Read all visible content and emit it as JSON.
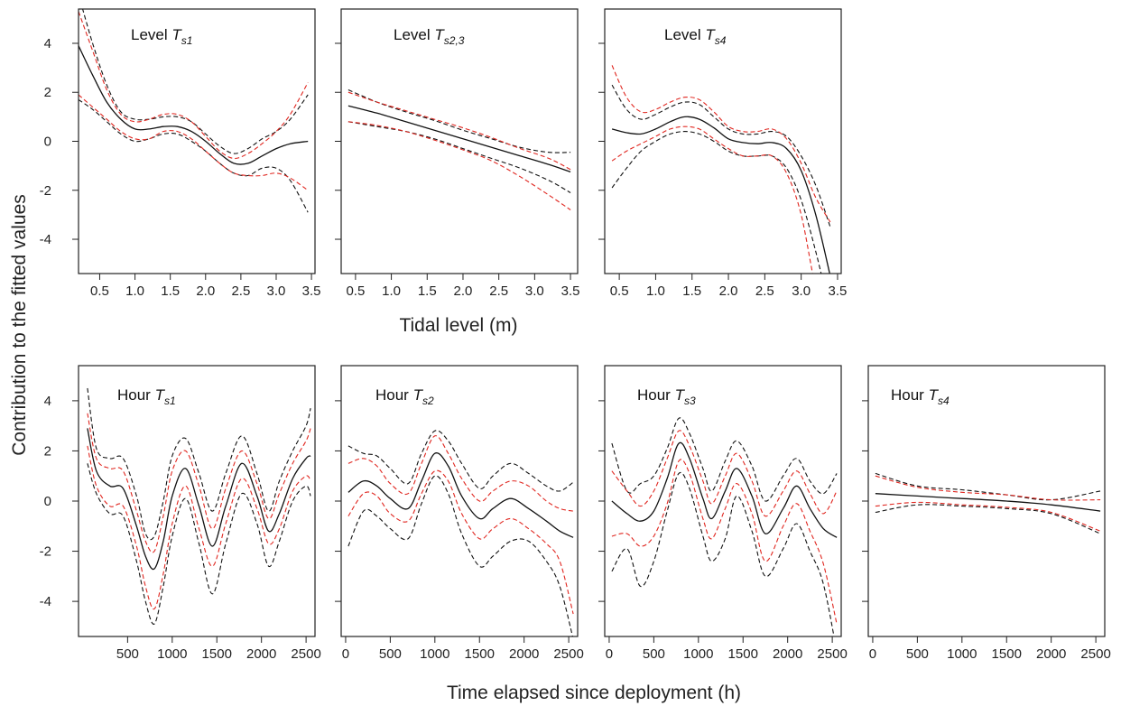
{
  "figure": {
    "ylabel": "Contribution to the fitted values",
    "xlabel_top": "Tidal level (m)",
    "xlabel_bottom": "Time elapsed since deployment (h)"
  },
  "colors": {
    "fit": "#111111",
    "ci_black": "#111111",
    "ci_red": "#e0261f"
  },
  "chart_data": [
    {
      "type": "line",
      "label_prefix": "Level",
      "label_sub": "s1",
      "xlim": [
        0.2,
        3.55
      ],
      "ylim": [
        -5.4,
        5.4
      ],
      "xticks": [
        "0.5",
        "1.0",
        "1.5",
        "2.0",
        "2.5",
        "3.0",
        "3.5"
      ],
      "yticks": [
        "-4",
        "-2",
        "0",
        "2",
        "4"
      ],
      "x": [
        0.2,
        0.4,
        0.6,
        0.8,
        1.0,
        1.2,
        1.4,
        1.6,
        1.8,
        2.0,
        2.2,
        2.4,
        2.6,
        2.8,
        3.0,
        3.2,
        3.45
      ],
      "series": [
        {
          "style": "fit",
          "values": [
            3.9,
            2.7,
            1.6,
            0.9,
            0.5,
            0.5,
            0.6,
            0.6,
            0.4,
            0.0,
            -0.5,
            -0.9,
            -0.9,
            -0.6,
            -0.3,
            -0.1,
            0.0
          ]
        },
        {
          "style": "ci_black",
          "values": [
            6.0,
            4.0,
            2.3,
            1.2,
            0.9,
            0.9,
            1.0,
            1.0,
            0.8,
            0.3,
            -0.2,
            -0.5,
            -0.3,
            0.1,
            0.4,
            0.9,
            1.9
          ]
        },
        {
          "style": "ci_black",
          "values": [
            1.7,
            1.3,
            0.8,
            0.3,
            0.0,
            0.1,
            0.3,
            0.3,
            0.0,
            -0.4,
            -0.9,
            -1.3,
            -1.4,
            -1.1,
            -1.1,
            -1.6,
            -2.9
          ]
        },
        {
          "style": "ci_red",
          "values": [
            5.3,
            3.7,
            2.1,
            1.1,
            0.8,
            0.9,
            1.1,
            1.1,
            0.8,
            0.2,
            -0.4,
            -0.7,
            -0.5,
            -0.1,
            0.4,
            1.1,
            2.4
          ]
        },
        {
          "style": "ci_red",
          "values": [
            1.9,
            1.4,
            0.9,
            0.4,
            0.1,
            0.1,
            0.4,
            0.4,
            0.1,
            -0.4,
            -0.9,
            -1.3,
            -1.4,
            -1.4,
            -1.3,
            -1.5,
            -2.0
          ]
        }
      ]
    },
    {
      "type": "line",
      "label_prefix": "Level",
      "label_sub": "s2,3",
      "xlim": [
        0.3,
        3.6
      ],
      "ylim": [
        -5.4,
        5.4
      ],
      "xticks": [
        "0.5",
        "1.0",
        "1.5",
        "2.0",
        "2.5",
        "3.0",
        "3.5"
      ],
      "yticks": [
        "-4",
        "-2",
        "0",
        "2",
        "4"
      ],
      "x": [
        0.4,
        0.8,
        1.2,
        1.6,
        2.0,
        2.4,
        2.8,
        3.2,
        3.5
      ],
      "series": [
        {
          "style": "fit",
          "values": [
            1.45,
            1.15,
            0.8,
            0.45,
            0.1,
            -0.25,
            -0.6,
            -0.95,
            -1.25
          ]
        },
        {
          "style": "ci_black",
          "values": [
            2.1,
            1.6,
            1.2,
            0.85,
            0.45,
            0.1,
            -0.25,
            -0.45,
            -0.45
          ]
        },
        {
          "style": "ci_black",
          "values": [
            0.8,
            0.6,
            0.4,
            0.1,
            -0.3,
            -0.7,
            -1.1,
            -1.6,
            -2.1
          ]
        },
        {
          "style": "ci_red",
          "values": [
            2.0,
            1.6,
            1.25,
            0.9,
            0.55,
            0.15,
            -0.3,
            -0.7,
            -1.15
          ]
        },
        {
          "style": "ci_red",
          "values": [
            0.8,
            0.65,
            0.4,
            0.05,
            -0.35,
            -0.8,
            -1.45,
            -2.2,
            -2.8
          ]
        }
      ]
    },
    {
      "type": "line",
      "label_prefix": "Level",
      "label_sub": "s4",
      "xlim": [
        0.3,
        3.55
      ],
      "ylim": [
        -5.4,
        5.4
      ],
      "xticks": [
        "0.5",
        "1.0",
        "1.5",
        "2.0",
        "2.5",
        "3.0",
        "3.5"
      ],
      "yticks": [
        "-4",
        "-2",
        "0",
        "2",
        "4"
      ],
      "x": [
        0.4,
        0.6,
        0.8,
        1.0,
        1.2,
        1.4,
        1.6,
        1.8,
        2.0,
        2.2,
        2.4,
        2.6,
        2.8,
        3.0,
        3.2,
        3.4
      ],
      "series": [
        {
          "style": "fit",
          "values": [
            0.5,
            0.35,
            0.3,
            0.5,
            0.8,
            1.0,
            0.9,
            0.55,
            0.1,
            -0.05,
            -0.1,
            -0.05,
            -0.3,
            -1.2,
            -3.0,
            -5.5
          ]
        },
        {
          "style": "ci_black",
          "values": [
            2.3,
            1.3,
            0.9,
            1.1,
            1.4,
            1.6,
            1.5,
            1.0,
            0.5,
            0.3,
            0.3,
            0.4,
            0.2,
            -0.6,
            -1.8,
            -3.5
          ]
        },
        {
          "style": "ci_black",
          "values": [
            -1.9,
            -1.1,
            -0.4,
            0.0,
            0.3,
            0.4,
            0.3,
            0.0,
            -0.4,
            -0.6,
            -0.6,
            -0.6,
            -1.1,
            -2.4,
            -4.5,
            -7.0
          ]
        },
        {
          "style": "ci_red",
          "values": [
            3.1,
            1.8,
            1.2,
            1.3,
            1.6,
            1.8,
            1.7,
            1.2,
            0.6,
            0.4,
            0.4,
            0.5,
            0.1,
            -0.9,
            -2.3,
            -3.3
          ]
        },
        {
          "style": "ci_red",
          "values": [
            -0.8,
            -0.4,
            -0.1,
            0.2,
            0.5,
            0.6,
            0.5,
            0.1,
            -0.3,
            -0.6,
            -0.6,
            -0.6,
            -1.3,
            -3.0,
            -6.0,
            -8.0
          ]
        }
      ]
    },
    {
      "type": "line",
      "label_prefix": "Hour",
      "label_sub": "s1",
      "xlim": [
        -50,
        2600
      ],
      "ylim": [
        -5.4,
        5.4
      ],
      "xticks": [
        "500",
        "1000",
        "1500",
        "2000",
        "2500"
      ],
      "yticks": [
        "-4",
        "-2",
        "0",
        "2",
        "4"
      ],
      "x": [
        50,
        150,
        300,
        450,
        600,
        700,
        800,
        900,
        1000,
        1150,
        1300,
        1450,
        1600,
        1780,
        1950,
        2080,
        2200,
        2350,
        2500,
        2550
      ],
      "series": [
        {
          "style": "fit",
          "values": [
            2.9,
            1.2,
            0.6,
            0.5,
            -1.0,
            -2.2,
            -2.7,
            -1.6,
            0.2,
            1.3,
            -0.2,
            -1.8,
            -0.2,
            1.5,
            0.2,
            -1.2,
            -0.5,
            0.9,
            1.7,
            1.8
          ]
        },
        {
          "style": "ci_black",
          "values": [
            4.5,
            2.1,
            1.7,
            1.7,
            0.2,
            -1.3,
            -1.4,
            0.0,
            1.8,
            2.5,
            1.1,
            -0.4,
            1.1,
            2.6,
            1.1,
            -0.4,
            0.8,
            2.0,
            3.0,
            3.7
          ]
        },
        {
          "style": "ci_black",
          "values": [
            1.5,
            0.3,
            -0.5,
            -0.6,
            -2.4,
            -4.0,
            -4.9,
            -3.4,
            -1.4,
            0.1,
            -1.7,
            -3.7,
            -1.7,
            0.3,
            -0.9,
            -2.6,
            -1.6,
            0.0,
            0.6,
            0.2
          ]
        },
        {
          "style": "ci_red",
          "values": [
            3.5,
            1.7,
            1.3,
            1.2,
            -0.4,
            -1.6,
            -2.0,
            -0.6,
            1.2,
            2.0,
            0.6,
            -1.1,
            0.5,
            2.0,
            0.7,
            -0.7,
            0.3,
            1.5,
            2.4,
            2.9
          ]
        },
        {
          "style": "ci_red",
          "values": [
            2.2,
            0.6,
            -0.2,
            -0.2,
            -1.8,
            -3.4,
            -4.3,
            -2.9,
            -0.9,
            0.6,
            -1.1,
            -2.6,
            -0.9,
            0.9,
            -0.3,
            -1.7,
            -1.1,
            0.4,
            1.0,
            0.8
          ]
        }
      ]
    },
    {
      "type": "line",
      "label_prefix": "Hour",
      "label_sub": "s2",
      "xlim": [
        -50,
        2600
      ],
      "ylim": [
        -5.4,
        5.4
      ],
      "xticks": [
        "0",
        "500",
        "1000",
        "1500",
        "2000",
        "2500"
      ],
      "yticks": [
        "-4",
        "-2",
        "0",
        "2",
        "4"
      ],
      "x": [
        30,
        200,
        350,
        500,
        700,
        850,
        1000,
        1150,
        1300,
        1500,
        1650,
        1850,
        2050,
        2250,
        2400,
        2550
      ],
      "series": [
        {
          "style": "fit",
          "values": [
            0.35,
            0.8,
            0.6,
            0.1,
            -0.3,
            0.8,
            1.9,
            1.4,
            0.2,
            -0.7,
            -0.3,
            0.1,
            -0.3,
            -0.8,
            -1.2,
            -1.45
          ]
        },
        {
          "style": "ci_black",
          "values": [
            2.2,
            1.9,
            1.8,
            1.3,
            0.7,
            1.9,
            2.8,
            2.4,
            1.5,
            0.5,
            1.0,
            1.5,
            1.1,
            0.6,
            0.4,
            0.75
          ]
        },
        {
          "style": "ci_black",
          "values": [
            -1.8,
            -0.4,
            -0.6,
            -1.1,
            -1.5,
            -0.1,
            1.0,
            0.3,
            -1.3,
            -2.6,
            -2.2,
            -1.6,
            -1.6,
            -2.4,
            -3.4,
            -5.5
          ]
        },
        {
          "style": "ci_red",
          "values": [
            1.5,
            1.7,
            1.4,
            0.7,
            0.3,
            1.5,
            2.6,
            1.9,
            0.9,
            0.0,
            0.4,
            0.8,
            0.6,
            0.0,
            -0.3,
            -0.4
          ]
        },
        {
          "style": "ci_red",
          "values": [
            -0.6,
            0.3,
            0.2,
            -0.5,
            -0.8,
            0.3,
            1.2,
            0.8,
            -0.5,
            -1.5,
            -1.1,
            -0.7,
            -1.1,
            -1.7,
            -2.4,
            -4.5
          ]
        }
      ]
    },
    {
      "type": "line",
      "label_prefix": "Hour",
      "label_sub": "s3",
      "xlim": [
        -50,
        2600
      ],
      "ylim": [
        -5.4,
        5.4
      ],
      "xticks": [
        "0",
        "500",
        "1000",
        "1500",
        "2000",
        "2500"
      ],
      "yticks": [
        "-4",
        "-2",
        "0",
        "2",
        "4"
      ],
      "x": [
        30,
        200,
        350,
        500,
        650,
        780,
        900,
        1050,
        1150,
        1300,
        1430,
        1600,
        1750,
        1950,
        2100,
        2250,
        2400,
        2550
      ],
      "series": [
        {
          "style": "fit",
          "values": [
            0.0,
            -0.5,
            -0.8,
            -0.4,
            0.9,
            2.3,
            1.7,
            0.1,
            -0.7,
            0.4,
            1.3,
            0.2,
            -1.3,
            -0.3,
            0.6,
            -0.3,
            -1.1,
            -1.45
          ]
        },
        {
          "style": "ci_black",
          "values": [
            2.3,
            0.4,
            0.7,
            1.0,
            2.1,
            3.3,
            2.7,
            1.3,
            0.4,
            1.6,
            2.4,
            1.4,
            0.0,
            1.0,
            1.7,
            0.8,
            0.3,
            1.1
          ]
        },
        {
          "style": "ci_black",
          "values": [
            -2.8,
            -1.9,
            -3.4,
            -2.4,
            -0.4,
            1.1,
            0.5,
            -1.4,
            -2.4,
            -1.5,
            0.2,
            -1.2,
            -3.0,
            -1.9,
            -0.9,
            -2.0,
            -3.3,
            -6.0
          ]
        },
        {
          "style": "ci_red",
          "values": [
            1.2,
            0.4,
            -0.2,
            0.4,
            1.7,
            2.8,
            2.2,
            0.8,
            -0.1,
            1.0,
            1.9,
            0.8,
            -0.6,
            0.4,
            1.2,
            0.3,
            -0.5,
            0.4
          ]
        },
        {
          "style": "ci_red",
          "values": [
            -1.4,
            -1.3,
            -1.8,
            -1.4,
            -0.1,
            1.6,
            1.1,
            -0.7,
            -1.5,
            -0.3,
            0.7,
            -0.5,
            -2.4,
            -1.0,
            -0.1,
            -1.2,
            -2.5,
            -4.9
          ]
        }
      ]
    },
    {
      "type": "line",
      "label_prefix": "Hour",
      "label_sub": "s4",
      "xlim": [
        -50,
        2600
      ],
      "ylim": [
        -5.4,
        5.4
      ],
      "xticks": [
        "0",
        "500",
        "1000",
        "1500",
        "2000",
        "2500"
      ],
      "yticks": [
        "-4",
        "-2",
        "0",
        "2",
        "4"
      ],
      "x": [
        30,
        500,
        1000,
        1500,
        2000,
        2550
      ],
      "series": [
        {
          "style": "fit",
          "values": [
            0.3,
            0.2,
            0.1,
            0.0,
            -0.15,
            -0.4
          ]
        },
        {
          "style": "ci_black",
          "values": [
            1.1,
            0.6,
            0.45,
            0.25,
            0.05,
            0.4
          ]
        },
        {
          "style": "ci_black",
          "values": [
            -0.45,
            -0.15,
            -0.2,
            -0.3,
            -0.5,
            -1.3
          ]
        },
        {
          "style": "ci_red",
          "values": [
            1.0,
            0.55,
            0.35,
            0.25,
            0.05,
            0.05
          ]
        },
        {
          "style": "ci_red",
          "values": [
            -0.2,
            -0.05,
            -0.15,
            -0.25,
            -0.45,
            -1.2
          ]
        }
      ]
    }
  ]
}
